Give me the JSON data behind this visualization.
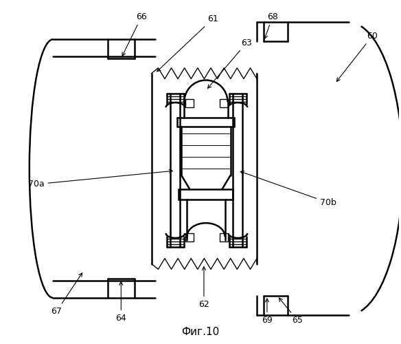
{
  "title": "Фиг.10",
  "background_color": "#ffffff",
  "line_color": "#000000",
  "lw_thick": 1.8,
  "lw_thin": 1.0,
  "ann_fs": 9
}
